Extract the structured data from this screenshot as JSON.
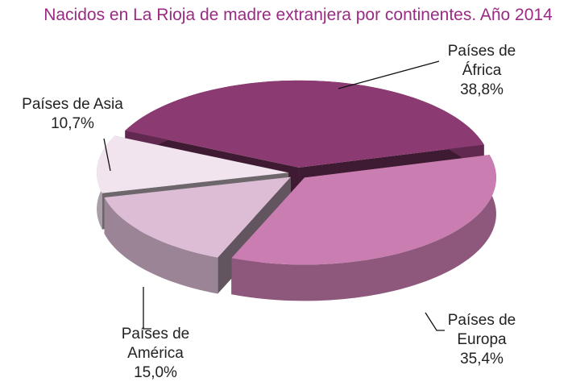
{
  "chart_data": {
    "type": "pie3d",
    "title": "Nacidos en La Rioja de madre extranjera por continentes. Año 2014",
    "categories": [
      "Países de África",
      "Países de Europa",
      "Países de América",
      "Países de Asia"
    ],
    "values": [
      38.8,
      35.4,
      15.0,
      10.7
    ],
    "value_labels": [
      "38,8%",
      "35,4%",
      "15,0%",
      "10,7%"
    ],
    "colors": [
      "#8c3a72",
      "#c97db0",
      "#dcbdd5",
      "#f2e4ee"
    ]
  }
}
